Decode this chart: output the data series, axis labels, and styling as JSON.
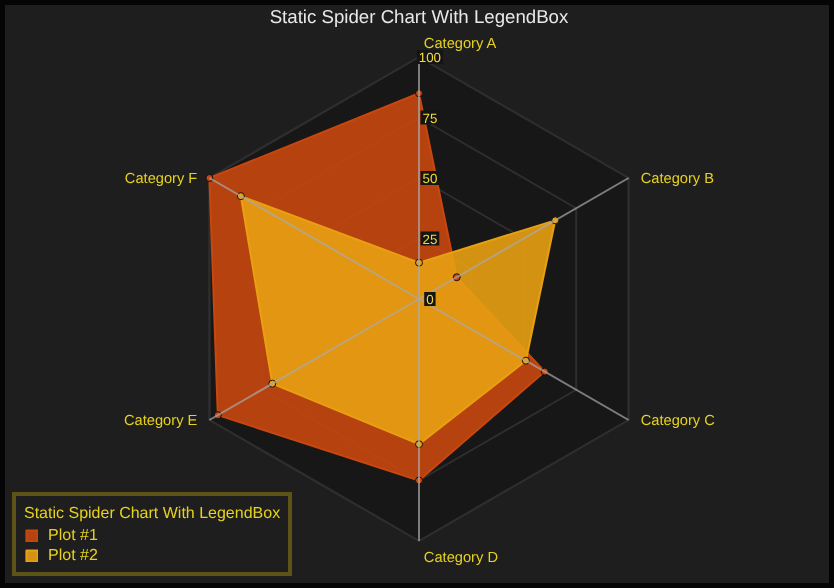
{
  "chart_data": {
    "type": "radar",
    "title": "Static Spider Chart With LegendBox",
    "legend_title": "Static Spider Chart With LegendBox",
    "categories": [
      "Category A",
      "Category B",
      "Category C",
      "Category D",
      "Category E",
      "Category F"
    ],
    "series": [
      {
        "name": "Plot #1",
        "color": "#c8470f",
        "values": [
          85,
          18,
          60,
          75,
          96,
          100
        ]
      },
      {
        "name": "Plot #2",
        "color": "#e8a012",
        "values": [
          15,
          65,
          51,
          60,
          70,
          85
        ]
      }
    ],
    "ylim": [
      0,
      100
    ],
    "yticks": [
      0,
      25,
      50,
      75,
      100
    ],
    "grid": true,
    "legend": "bottom left"
  }
}
